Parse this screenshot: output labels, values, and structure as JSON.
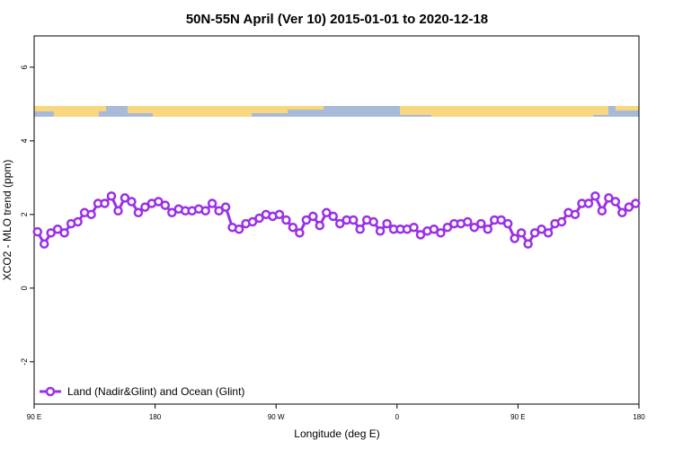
{
  "chart_data": {
    "type": "line",
    "title": "50N-55N April (Ver 10)   2015-01-01 to 2020-12-18",
    "xlabel": "Longitude (deg E)",
    "ylabel": "XCO2 - MLO trend (ppm)",
    "xlim": [
      90,
      540
    ],
    "ylim": [
      -3.15,
      6.85
    ],
    "xticks": [
      {
        "value": 90,
        "label": "90 E"
      },
      {
        "value": 180,
        "label": "180"
      },
      {
        "value": 270,
        "label": "90 W"
      },
      {
        "value": 360,
        "label": "0"
      },
      {
        "value": 450,
        "label": "90 E"
      },
      {
        "value": 540,
        "label": "180"
      }
    ],
    "yticks": [
      -2,
      0,
      2,
      4,
      6
    ],
    "legend": "bottom-left",
    "x": [
      92.5,
      97.5,
      102.5,
      107.5,
      112.5,
      117.5,
      122.5,
      127.5,
      132.5,
      137.5,
      142.5,
      147.5,
      152.5,
      157.5,
      162.5,
      167.5,
      172.5,
      177.5,
      182.5,
      187.5,
      192.5,
      197.5,
      202.5,
      207.5,
      212.5,
      217.5,
      222.5,
      227.5,
      232.5,
      237.5,
      242.5,
      247.5,
      252.5,
      257.5,
      262.5,
      267.5,
      272.5,
      277.5,
      282.5,
      287.5,
      292.5,
      297.5,
      302.5,
      307.5,
      312.5,
      317.5,
      322.5,
      327.5,
      332.5,
      337.5,
      342.5,
      347.5,
      352.5,
      357.5,
      362.5,
      367.5,
      372.5,
      377.5,
      382.5,
      387.5,
      392.5,
      397.5,
      402.5,
      407.5,
      412.5,
      417.5,
      422.5,
      427.5,
      432.5,
      437.5,
      442.5,
      447.5,
      452.5,
      457.5,
      462.5,
      467.5,
      472.5,
      477.5,
      482.5,
      487.5,
      492.5,
      497.5,
      502.5,
      507.5,
      512.5,
      517.5,
      522.5,
      527.5,
      532.5,
      537.5
    ],
    "series": [
      {
        "name": "Land (Nadir&Glint) and Ocean (Glint)",
        "color": "#9b30e6",
        "values": [
          1.53,
          1.2,
          1.5,
          1.6,
          1.5,
          1.75,
          1.8,
          2.05,
          2.0,
          2.3,
          2.3,
          2.5,
          2.1,
          2.45,
          2.35,
          2.05,
          2.2,
          2.3,
          2.35,
          2.25,
          2.05,
          2.15,
          2.1,
          2.1,
          2.15,
          2.1,
          2.3,
          2.1,
          2.2,
          1.65,
          1.6,
          1.75,
          1.8,
          1.9,
          2.0,
          1.95,
          2.0,
          1.85,
          1.65,
          1.5,
          1.85,
          1.95,
          1.7,
          2.05,
          1.95,
          1.75,
          1.85,
          1.85,
          1.6,
          1.85,
          1.8,
          1.55,
          1.75,
          1.6,
          1.6,
          1.6,
          1.65,
          1.45,
          1.55,
          1.6,
          1.5,
          1.65,
          1.75,
          1.75,
          1.8,
          1.65,
          1.75,
          1.6,
          1.85,
          1.85,
          1.75,
          1.35,
          1.5,
          1.2,
          1.5,
          1.6,
          1.5,
          1.75,
          1.8,
          2.05,
          2.0,
          2.3,
          2.3,
          2.5,
          2.1,
          2.45,
          2.35,
          2.05,
          2.2,
          2.3
        ]
      }
    ]
  }
}
